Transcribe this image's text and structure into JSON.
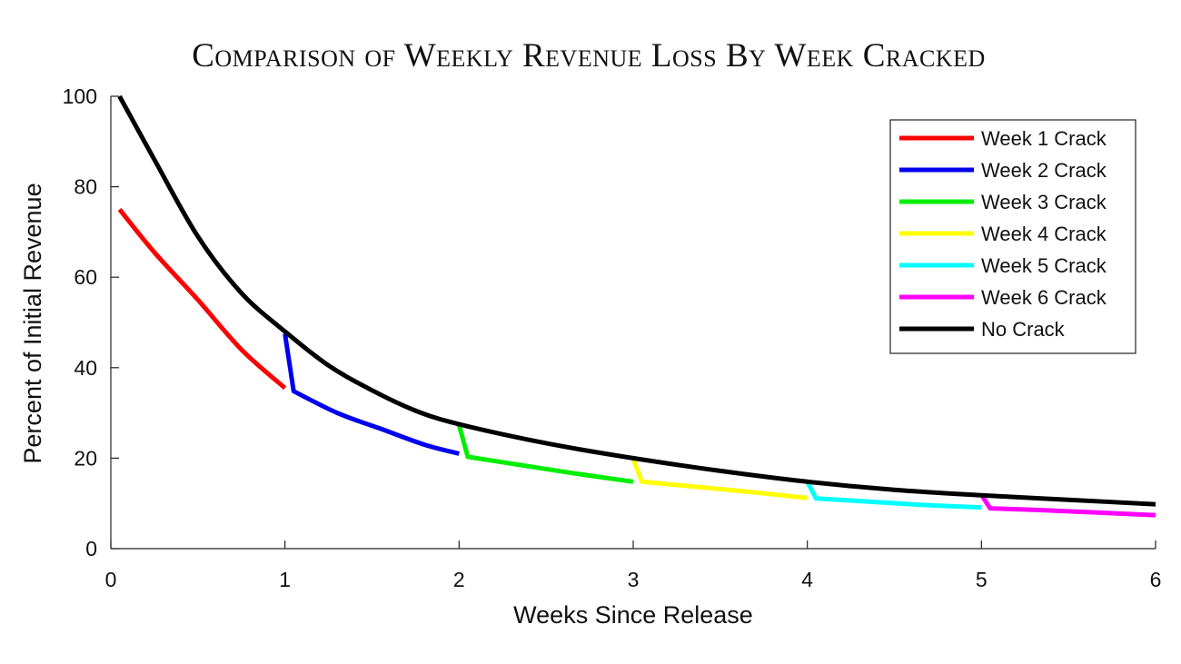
{
  "chart_data": {
    "type": "line",
    "title": "Comparison of Weekly Revenue Loss By Week Cracked",
    "xlabel": "Weeks Since Release",
    "ylabel": "Percent of Initial Revenue",
    "xlim": [
      0,
      6
    ],
    "ylim": [
      0,
      100
    ],
    "xticks": [
      "0",
      "1",
      "2",
      "3",
      "4",
      "5",
      "6"
    ],
    "yticks": [
      "0",
      "20",
      "40",
      "60",
      "80",
      "100"
    ],
    "grid": false,
    "legend_position": "top-right",
    "series": [
      {
        "name": "Week 1 Crack",
        "color": "#ff0000",
        "points": [
          [
            0.05,
            75
          ],
          [
            0.25,
            65.5
          ],
          [
            0.5,
            55
          ],
          [
            0.75,
            44
          ],
          [
            1.0,
            35.5
          ]
        ]
      },
      {
        "name": "Week 2 Crack",
        "color": "#0000ee",
        "points": [
          [
            1.0,
            47.5
          ],
          [
            1.05,
            34.8
          ],
          [
            1.3,
            30
          ],
          [
            1.55,
            26.5
          ],
          [
            1.8,
            23
          ],
          [
            2.0,
            21
          ]
        ]
      },
      {
        "name": "Week 3 Crack",
        "color": "#00ee00",
        "points": [
          [
            2.0,
            27.3
          ],
          [
            2.05,
            20.3
          ],
          [
            2.35,
            18.5
          ],
          [
            2.65,
            16.7
          ],
          [
            3.0,
            14.8
          ]
        ]
      },
      {
        "name": "Week 4 Crack",
        "color": "#ffff00",
        "points": [
          [
            3.0,
            19.8
          ],
          [
            3.05,
            14.8
          ],
          [
            3.35,
            13.7
          ],
          [
            3.65,
            12.6
          ],
          [
            4.0,
            11.2
          ]
        ]
      },
      {
        "name": "Week 5 Crack",
        "color": "#00ffff",
        "points": [
          [
            4.0,
            14.8
          ],
          [
            4.05,
            11.1
          ],
          [
            4.35,
            10.4
          ],
          [
            4.65,
            9.7
          ],
          [
            5.0,
            9.1
          ]
        ]
      },
      {
        "name": "Week 6 Crack",
        "color": "#ff00ff",
        "points": [
          [
            5.0,
            11.9
          ],
          [
            5.05,
            8.9
          ],
          [
            5.35,
            8.5
          ],
          [
            5.65,
            8.0
          ],
          [
            6.0,
            7.4
          ]
        ]
      },
      {
        "name": "No Crack",
        "color": "#000000",
        "points": [
          [
            0.05,
            100
          ],
          [
            0.25,
            86
          ],
          [
            0.5,
            69
          ],
          [
            0.75,
            56.5
          ],
          [
            1.0,
            48
          ],
          [
            1.25,
            40.5
          ],
          [
            1.5,
            35
          ],
          [
            1.75,
            30.5
          ],
          [
            2.0,
            27.5
          ],
          [
            2.5,
            23.3
          ],
          [
            3.0,
            20
          ],
          [
            3.5,
            17.2
          ],
          [
            4.0,
            14.8
          ],
          [
            4.5,
            13.0
          ],
          [
            5.0,
            11.8
          ],
          [
            5.5,
            10.8
          ],
          [
            6.0,
            9.8
          ]
        ]
      }
    ]
  }
}
